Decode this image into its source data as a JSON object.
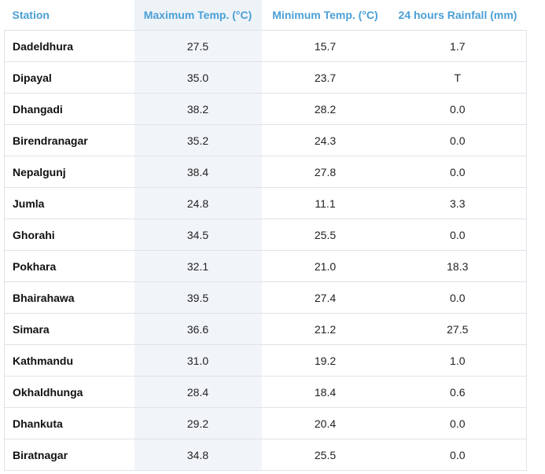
{
  "headers": {
    "station": "Station",
    "max_temp": "Maximum Temp. (°C)",
    "min_temp": "Minimum Temp. (°C)",
    "rainfall": "24 hours Rainfall (mm)"
  },
  "rows": [
    {
      "station": "Dadeldhura",
      "max": "27.5",
      "min": "15.7",
      "rain": "1.7"
    },
    {
      "station": "Dipayal",
      "max": "35.0",
      "min": "23.7",
      "rain": "T"
    },
    {
      "station": "Dhangadi",
      "max": "38.2",
      "min": "28.2",
      "rain": "0.0"
    },
    {
      "station": "Birendranagar",
      "max": "35.2",
      "min": "24.3",
      "rain": "0.0"
    },
    {
      "station": "Nepalgunj",
      "max": "38.4",
      "min": "27.8",
      "rain": "0.0"
    },
    {
      "station": "Jumla",
      "max": "24.8",
      "min": "11.1",
      "rain": "3.3"
    },
    {
      "station": "Ghorahi",
      "max": "34.5",
      "min": "25.5",
      "rain": "0.0"
    },
    {
      "station": "Pokhara",
      "max": "32.1",
      "min": "21.0",
      "rain": "18.3"
    },
    {
      "station": "Bhairahawa",
      "max": "39.5",
      "min": "27.4",
      "rain": "0.0"
    },
    {
      "station": "Simara",
      "max": "36.6",
      "min": "21.2",
      "rain": "27.5"
    },
    {
      "station": "Kathmandu",
      "max": "31.0",
      "min": "19.2",
      "rain": "1.0"
    },
    {
      "station": "Okhaldhunga",
      "max": "28.4",
      "min": "18.4",
      "rain": "0.6"
    },
    {
      "station": "Dhankuta",
      "max": "29.2",
      "min": "20.4",
      "rain": "0.0"
    },
    {
      "station": "Biratnagar",
      "max": "34.8",
      "min": "25.5",
      "rain": "0.0"
    }
  ],
  "colors": {
    "header_text": "#4a9fd6",
    "highlight_column": "#f1f5f9",
    "border": "#dfe3e8"
  }
}
